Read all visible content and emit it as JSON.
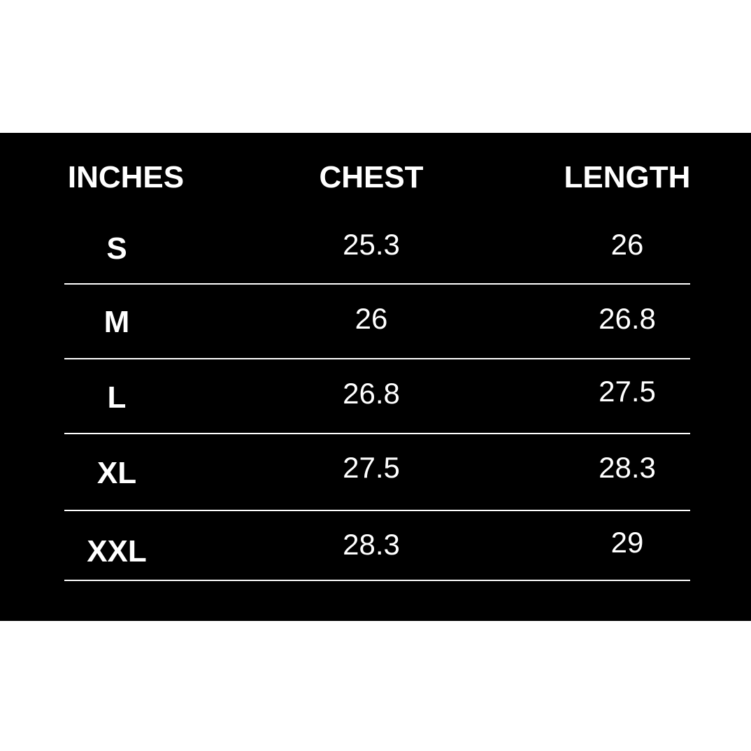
{
  "table": {
    "headers": [
      "INCHES",
      "CHEST",
      "LENGTH"
    ],
    "rows": [
      {
        "size": "S",
        "chest": "25.3",
        "length": "26"
      },
      {
        "size": "M",
        "chest": "26",
        "length": "26.8"
      },
      {
        "size": "L",
        "chest": "26.8",
        "length": "27.5"
      },
      {
        "size": "XL",
        "chest": "27.5",
        "length": "28.3"
      },
      {
        "size": "XXL",
        "chest": "28.3",
        "length": "29"
      }
    ]
  },
  "colors": {
    "background": "#000000",
    "text": "#ffffff",
    "page": "#ffffff"
  }
}
